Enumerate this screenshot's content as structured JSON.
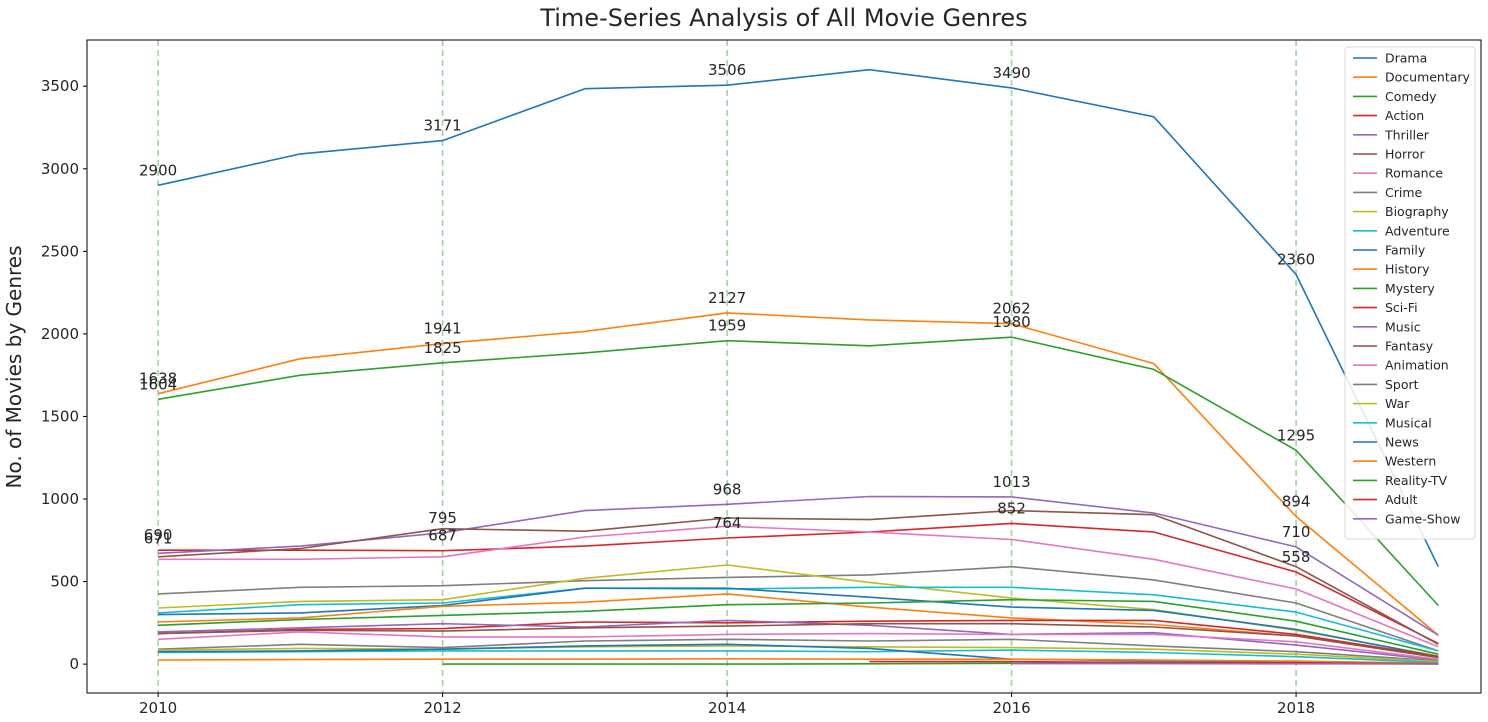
{
  "chart_data": {
    "type": "line",
    "title": "Time-Series Analysis of All Movie Genres",
    "xlabel": "",
    "ylabel": "No. of Movies by Genres",
    "xlim": [
      2009.5,
      2019.3
    ],
    "ylim": [
      -175,
      3780
    ],
    "x_ticks": [
      2010,
      2012,
      2014,
      2016,
      2018
    ],
    "y_ticks": [
      0,
      500,
      1000,
      1500,
      2000,
      2500,
      3000,
      3500
    ],
    "vlines": [
      2010,
      2012,
      2014,
      2016,
      2018
    ],
    "vline_color": "#2ca02c",
    "grid": false,
    "legend_position": "top-right",
    "x": [
      2010,
      2011,
      2012,
      2013,
      2014,
      2015,
      2016,
      2017,
      2018,
      2019
    ],
    "series": [
      {
        "name": "Drama",
        "color": "#1f77b4",
        "values": [
          2900,
          3090,
          3171,
          3485,
          3506,
          3600,
          3490,
          3315,
          2360,
          590
        ]
      },
      {
        "name": "Documentary",
        "color": "#ff7f0e",
        "values": [
          1638,
          1850,
          1941,
          2015,
          2127,
          2085,
          2062,
          1820,
          894,
          175
        ]
      },
      {
        "name": "Comedy",
        "color": "#2ca02c",
        "values": [
          1604,
          1750,
          1825,
          1885,
          1959,
          1928,
          1980,
          1785,
          1295,
          355
        ]
      },
      {
        "name": "Action",
        "color": "#d62728",
        "values": [
          690,
          690,
          687,
          715,
          764,
          800,
          852,
          800,
          558,
          125
        ]
      },
      {
        "name": "Thriller",
        "color": "#9467bd",
        "values": [
          671,
          715,
          795,
          930,
          968,
          1015,
          1013,
          915,
          710,
          175
        ]
      },
      {
        "name": "Horror",
        "color": "#8c564b",
        "values": [
          650,
          700,
          820,
          805,
          885,
          875,
          930,
          905,
          590,
          120
        ]
      },
      {
        "name": "Romance",
        "color": "#e377c2",
        "values": [
          635,
          635,
          650,
          770,
          835,
          800,
          755,
          635,
          455,
          105
        ]
      },
      {
        "name": "Crime",
        "color": "#7f7f7f",
        "values": [
          425,
          465,
          475,
          505,
          525,
          540,
          590,
          510,
          370,
          80
        ]
      },
      {
        "name": "Biography",
        "color": "#bcbd22",
        "values": [
          340,
          380,
          390,
          520,
          600,
          495,
          400,
          330,
          205,
          50
        ]
      },
      {
        "name": "Adventure",
        "color": "#17becf",
        "values": [
          310,
          360,
          370,
          460,
          455,
          465,
          465,
          420,
          315,
          80
        ]
      },
      {
        "name": "Family",
        "color": "#1f77b4",
        "values": [
          300,
          310,
          355,
          460,
          460,
          405,
          345,
          325,
          210,
          45
        ]
      },
      {
        "name": "History",
        "color": "#ff7f0e",
        "values": [
          255,
          280,
          350,
          375,
          425,
          345,
          280,
          240,
          170,
          40
        ]
      },
      {
        "name": "Mystery",
        "color": "#2ca02c",
        "values": [
          235,
          270,
          295,
          320,
          360,
          370,
          390,
          380,
          260,
          60
        ]
      },
      {
        "name": "Sci-Fi",
        "color": "#d62728",
        "values": [
          185,
          210,
          215,
          255,
          250,
          260,
          265,
          265,
          180,
          45
        ]
      },
      {
        "name": "Music",
        "color": "#9467bd",
        "values": [
          195,
          220,
          245,
          225,
          265,
          235,
          180,
          190,
          115,
          25
        ]
      },
      {
        "name": "Fantasy",
        "color": "#8c564b",
        "values": [
          185,
          205,
          200,
          220,
          230,
          245,
          245,
          225,
          170,
          40
        ]
      },
      {
        "name": "Animation",
        "color": "#e377c2",
        "values": [
          150,
          195,
          165,
          165,
          180,
          185,
          180,
          180,
          135,
          30
        ]
      },
      {
        "name": "Sport",
        "color": "#7f7f7f",
        "values": [
          90,
          120,
          100,
          140,
          150,
          140,
          150,
          110,
          75,
          20
        ]
      },
      {
        "name": "War",
        "color": "#bcbd22",
        "values": [
          85,
          95,
          90,
          105,
          110,
          105,
          100,
          90,
          60,
          15
        ]
      },
      {
        "name": "Musical",
        "color": "#17becf",
        "values": [
          70,
          75,
          80,
          80,
          80,
          75,
          85,
          70,
          45,
          10
        ]
      },
      {
        "name": "News",
        "color": "#1f77b4",
        "values": [
          75,
          80,
          90,
          110,
          120,
          95,
          30,
          20,
          15,
          5
        ]
      },
      {
        "name": "Western",
        "color": "#ff7f0e",
        "values": [
          25,
          28,
          30,
          30,
          32,
          30,
          30,
          25,
          18,
          5
        ]
      },
      {
        "name": "Reality-TV",
        "color": "#2ca02c",
        "values": [
          null,
          null,
          0,
          0,
          0,
          2,
          5,
          5,
          3,
          1
        ]
      },
      {
        "name": "Adult",
        "color": "#d62728",
        "values": [
          null,
          null,
          null,
          null,
          null,
          15,
          15,
          10,
          8,
          2
        ]
      },
      {
        "name": "Game-Show",
        "color": "#9467bd",
        "values": [
          null,
          null,
          null,
          null,
          null,
          null,
          3,
          3,
          2,
          1
        ]
      }
    ],
    "annotations": [
      {
        "x": 2010,
        "y": 2900,
        "text": "2900"
      },
      {
        "x": 2010,
        "y": 1638,
        "text": "1638"
      },
      {
        "x": 2010,
        "y": 1604,
        "text": "1604"
      },
      {
        "x": 2010,
        "y": 690,
        "text": "690"
      },
      {
        "x": 2010,
        "y": 671,
        "text": "671"
      },
      {
        "x": 2012,
        "y": 3171,
        "text": "3171"
      },
      {
        "x": 2012,
        "y": 1941,
        "text": "1941"
      },
      {
        "x": 2012,
        "y": 1825,
        "text": "1825"
      },
      {
        "x": 2012,
        "y": 795,
        "text": "795"
      },
      {
        "x": 2012,
        "y": 687,
        "text": "687"
      },
      {
        "x": 2014,
        "y": 3506,
        "text": "3506"
      },
      {
        "x": 2014,
        "y": 2127,
        "text": "2127"
      },
      {
        "x": 2014,
        "y": 1959,
        "text": "1959"
      },
      {
        "x": 2014,
        "y": 968,
        "text": "968"
      },
      {
        "x": 2014,
        "y": 764,
        "text": "764"
      },
      {
        "x": 2016,
        "y": 3490,
        "text": "3490"
      },
      {
        "x": 2016,
        "y": 2062,
        "text": "2062"
      },
      {
        "x": 2016,
        "y": 1980,
        "text": "1980"
      },
      {
        "x": 2016,
        "y": 1013,
        "text": "1013"
      },
      {
        "x": 2016,
        "y": 852,
        "text": "852"
      },
      {
        "x": 2018,
        "y": 2360,
        "text": "2360"
      },
      {
        "x": 2018,
        "y": 1295,
        "text": "1295"
      },
      {
        "x": 2018,
        "y": 894,
        "text": "894"
      },
      {
        "x": 2018,
        "y": 710,
        "text": "710"
      },
      {
        "x": 2018,
        "y": 558,
        "text": "558"
      }
    ]
  }
}
